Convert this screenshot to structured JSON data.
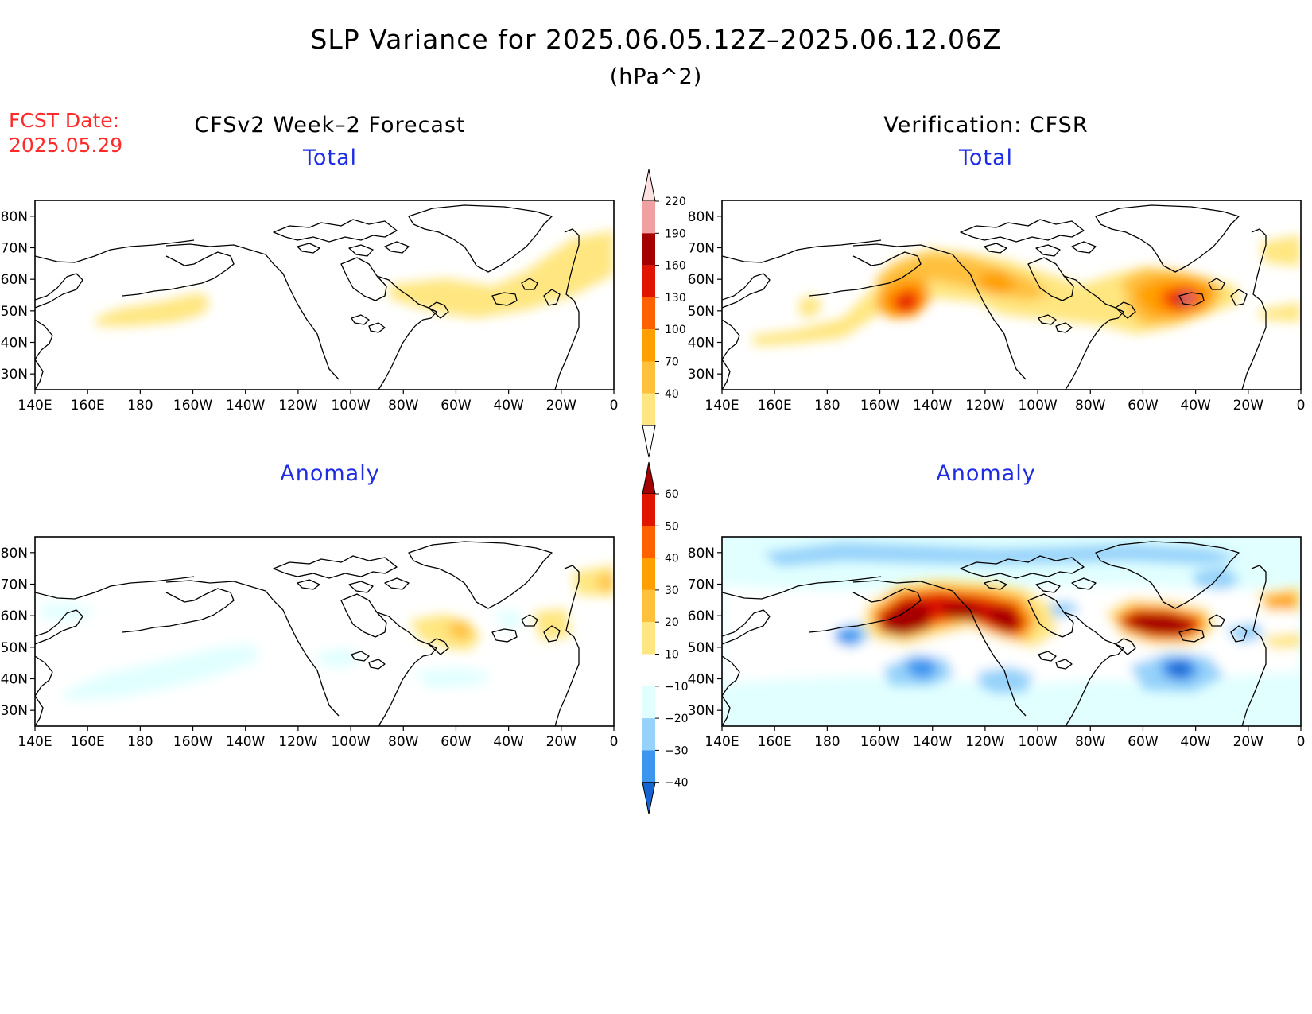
{
  "header": {
    "title": "SLP Variance for 2025.06.05.12Z–2025.06.12.06Z",
    "units": "(hPa^2)",
    "fcst_label": "FCST Date:",
    "fcst_date": "2025.05.29",
    "left_column_title": "CFSv2 Week–2 Forecast",
    "right_column_title": "Verification: CFSR"
  },
  "panels": {
    "fc_total": {
      "title": "Total"
    },
    "vf_total": {
      "title": "Total"
    },
    "fc_anom": {
      "title": "Anomaly"
    },
    "vf_anom": {
      "title": "Anomaly"
    }
  },
  "axes": {
    "lat_labels": [
      "80N",
      "70N",
      "60N",
      "50N",
      "40N",
      "30N"
    ],
    "lon_labels": [
      "140E",
      "160E",
      "180",
      "160W",
      "140W",
      "120W",
      "100W",
      "80W",
      "60W",
      "40W",
      "20W",
      "0"
    ],
    "lat_range": [
      25,
      85
    ],
    "lon_range": [
      140,
      360
    ]
  },
  "colorbars": {
    "total": {
      "levels": [
        "40",
        "70",
        "100",
        "130",
        "160",
        "190",
        "220"
      ],
      "colors": [
        "#ffe680",
        "#ffc03c",
        "#ffa000",
        "#ff6000",
        "#e11400",
        "#a50000",
        "#f0a0a0",
        "#ffe0e0"
      ]
    },
    "anomaly": {
      "levels": [
        "60",
        "50",
        "40",
        "30",
        "20",
        "10",
        "−10",
        "−20",
        "−30",
        "−40"
      ],
      "colors": [
        "#a50000",
        "#e11400",
        "#ff6000",
        "#ffa000",
        "#ffc03c",
        "#ffe680",
        "#ffffff",
        "#e1ffff",
        "#96d2fa",
        "#3c96f0",
        "#1464d2"
      ]
    }
  },
  "colors": {
    "title_text": "#000000",
    "panel_title_text": "#1f2ce6",
    "forecast_date_text": "#ff2a2a"
  }
}
